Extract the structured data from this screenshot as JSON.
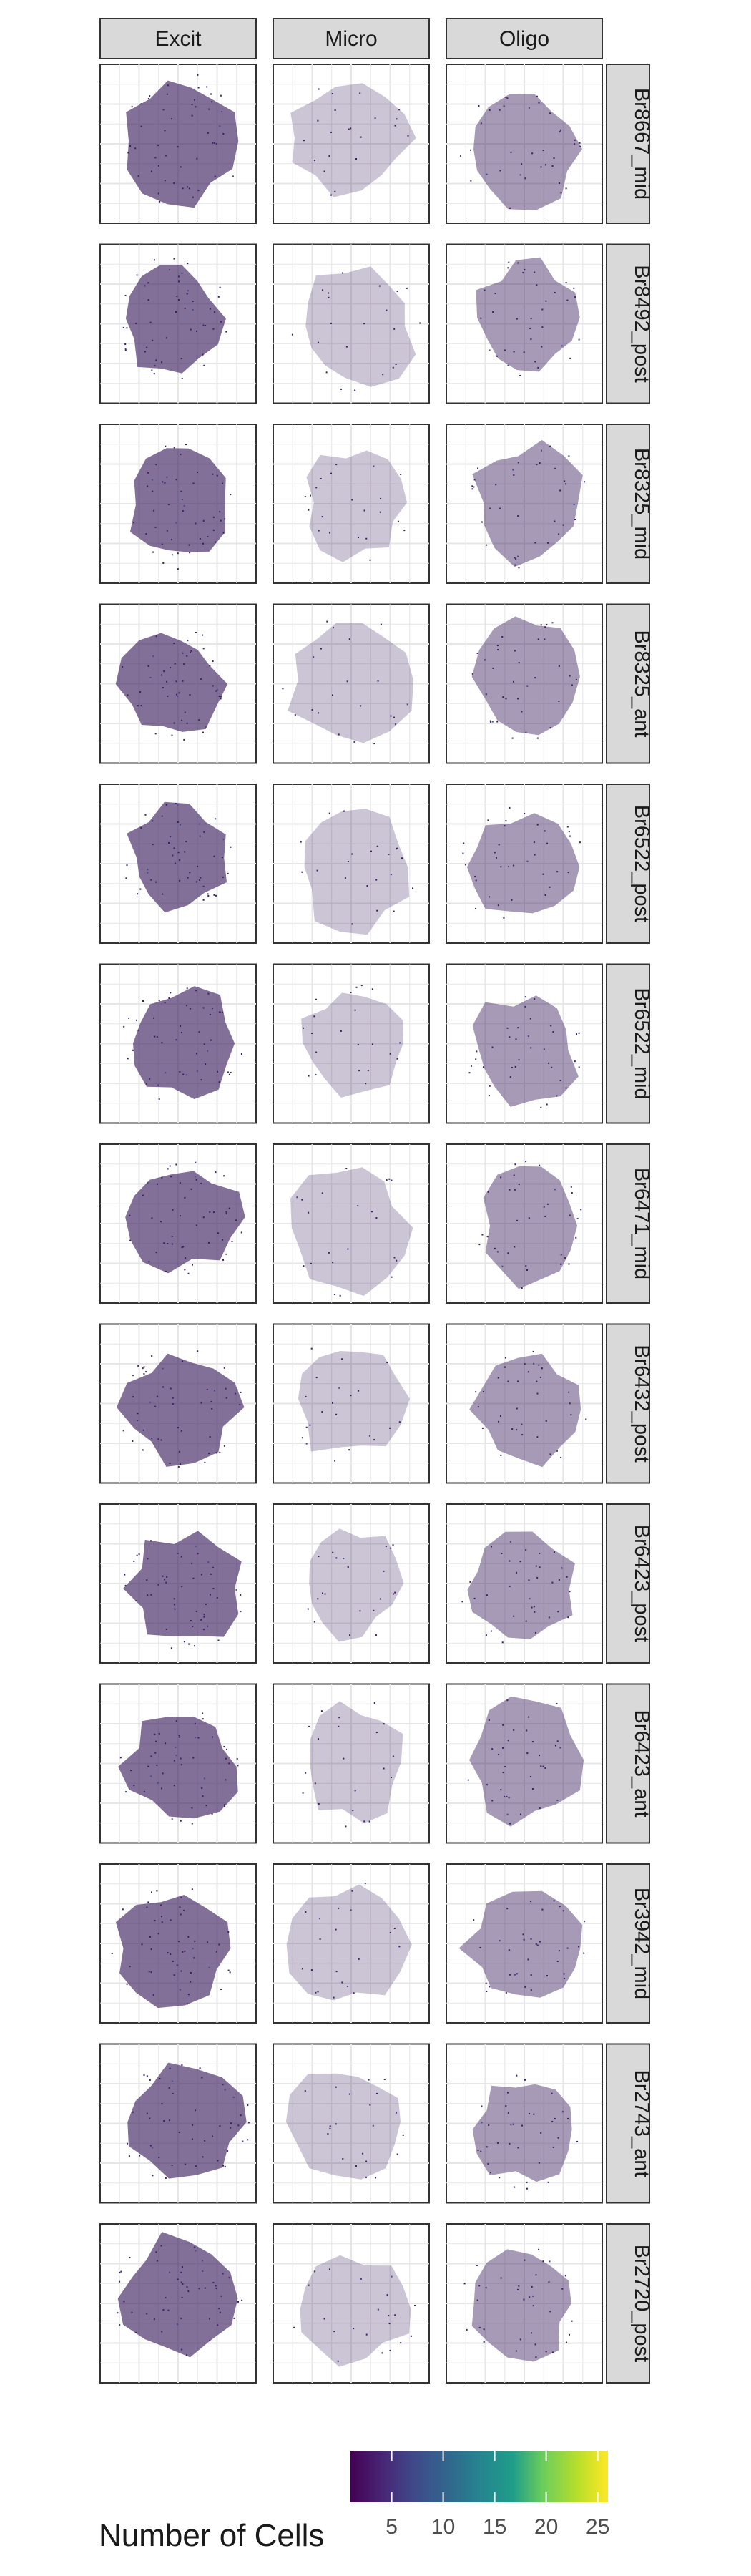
{
  "chart_data": {
    "type": "spatial-scatter-facet",
    "columns": [
      "Excit",
      "Micro",
      "Oligo"
    ],
    "rows": [
      "Br8667_mid",
      "Br8492_post",
      "Br8325_mid",
      "Br8325_ant",
      "Br6522_post",
      "Br6522_mid",
      "Br6471_mid",
      "Br6432_post",
      "Br6423_post",
      "Br6423_ant",
      "Br3942_mid",
      "Br2743_ant",
      "Br2720_post"
    ],
    "legend": {
      "title": "Number of Cells",
      "ticks": [
        5,
        10,
        15,
        20,
        25
      ],
      "range": [
        1,
        26
      ],
      "colormap": "viridis",
      "placement": "bottom"
    },
    "grid": true,
    "axis_labels_shown": false,
    "point_color": "#3b1f5e",
    "strip_fill": "#d9d9d9"
  }
}
